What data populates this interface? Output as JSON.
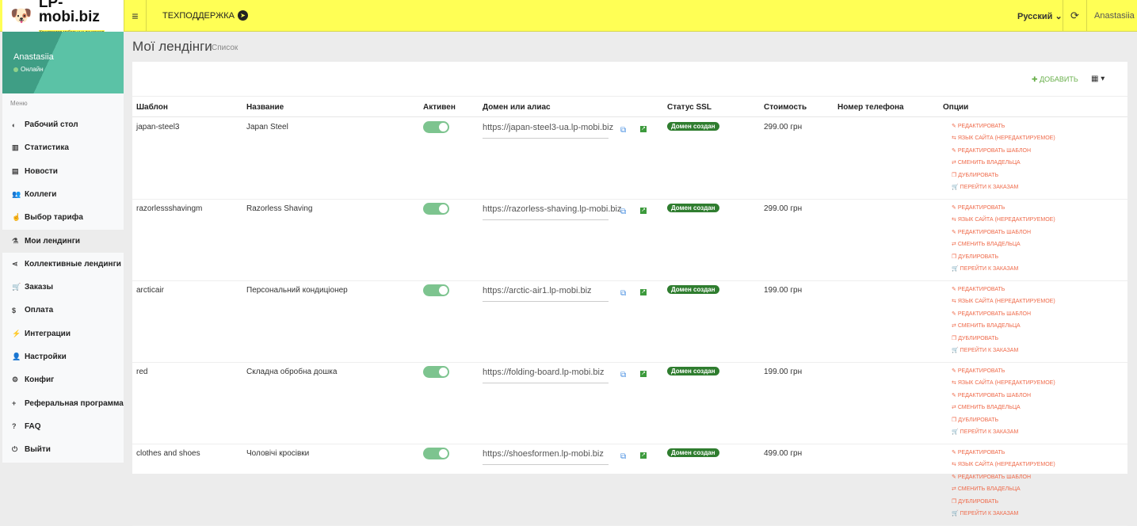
{
  "header": {
    "logo_name": "LP-mobi.biz",
    "logo_tagline": "Конструктор мобильных лендингов",
    "support": "ТЕХПОДДЕРЖКА",
    "language": "Русский",
    "user": "Anastasiia"
  },
  "profile": {
    "name": "Anastasiia",
    "status": "Онлайн"
  },
  "sidebar": {
    "menu_label": "Меню",
    "items": [
      {
        "label": "Рабочий стол",
        "icon": "dashboard-icon",
        "glyph": "◐"
      },
      {
        "label": "Статистика",
        "icon": "bar-chart-icon",
        "glyph": "▥"
      },
      {
        "label": "Новости",
        "icon": "newspaper-icon",
        "glyph": "▤"
      },
      {
        "label": "Коллеги",
        "icon": "users-icon",
        "glyph": "👥"
      },
      {
        "label": "Выбор тарифа",
        "icon": "hand-pointer-icon",
        "glyph": "☝"
      },
      {
        "label": "Мои лендинги",
        "icon": "landing-icon",
        "glyph": "⚗",
        "active": true
      },
      {
        "label": "Коллективные лендинги",
        "icon": "share-icon",
        "glyph": "⋖"
      },
      {
        "label": "Заказы",
        "icon": "cart-icon",
        "glyph": "🛒"
      },
      {
        "label": "Оплата",
        "icon": "dollar-icon",
        "glyph": "$"
      },
      {
        "label": "Интеграции",
        "icon": "plug-icon",
        "glyph": "⚡"
      },
      {
        "label": "Настройки",
        "icon": "user-icon",
        "glyph": "👤"
      },
      {
        "label": "Конфиг",
        "icon": "cogs-icon",
        "glyph": "⚙"
      },
      {
        "label": "Реферальная программа",
        "icon": "user-plus-icon",
        "glyph": "+"
      },
      {
        "label": "FAQ",
        "icon": "question-icon",
        "glyph": "?"
      },
      {
        "label": "Выйти",
        "icon": "power-icon",
        "glyph": "⏻"
      }
    ]
  },
  "page": {
    "title": "Мої лендінги",
    "subtitle": "Список",
    "add_label": "ДОБАВИТЬ"
  },
  "table": {
    "headers": [
      "Шаблон",
      "Название",
      "Активен",
      "Домен или алиас",
      "Статус SSL",
      "Стоимость",
      "Номер телефона",
      "Опции"
    ],
    "options": [
      "РЕДАКТИРОВАТЬ",
      "ЯЗЫК САЙТА (НЕРЕДАКТИРУЕМОЕ)",
      "РЕДАКТИРОВАТЬ ШАБЛОН",
      "СМЕНИТЬ ВЛАДЕЛЬЦА",
      "ДУБЛИРОВАТЬ",
      "ПЕРЕЙТИ К ЗАКАЗАМ"
    ],
    "rows": [
      {
        "template": "japan-steel3",
        "name": "Japan Steel",
        "active": true,
        "domain": "https://japan-steel3-ua.lp-mobi.biz",
        "ssl": "Домен создан",
        "price": "299.00 грн",
        "phone": ""
      },
      {
        "template": "razorlessshavingm",
        "name": "Razorless Shaving",
        "active": true,
        "domain": "https://razorless-shaving.lp-mobi.biz",
        "ssl": "Домен создан",
        "price": "299.00 грн",
        "phone": ""
      },
      {
        "template": "arcticair",
        "name": "Персональний кондиціонер",
        "active": true,
        "domain": "https://arctic-air1.lp-mobi.biz",
        "ssl": "Домен создан",
        "price": "199.00 грн",
        "phone": ""
      },
      {
        "template": "red",
        "name": "Складна обробна дошка",
        "active": true,
        "domain": "https://folding-board.lp-mobi.biz",
        "ssl": "Домен создан",
        "price": "199.00 грн",
        "phone": ""
      },
      {
        "template": "clothes and shoes",
        "name": "Чоловічі кросівки",
        "active": true,
        "domain": "https://shoesformen.lp-mobi.biz",
        "ssl": "Домен создан",
        "price": "499.00 грн",
        "phone": ""
      }
    ]
  }
}
